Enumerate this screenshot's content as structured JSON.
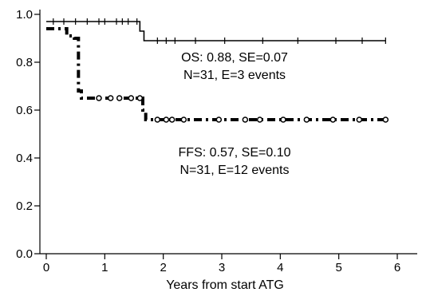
{
  "chart_data": {
    "type": "line",
    "title": "",
    "xlabel": "Years from start ATG",
    "ylabel": "",
    "xlim": [
      0,
      6.6
    ],
    "ylim": [
      0,
      1.0
    ],
    "x_ticks": [
      0,
      1,
      2,
      3,
      4,
      5,
      6
    ],
    "y_ticks": [
      0.0,
      0.2,
      0.4,
      0.6,
      0.8,
      1.0
    ],
    "x_tick_labels": [
      "0",
      "1",
      "2",
      "3",
      "4",
      "5",
      "6"
    ],
    "y_tick_labels": [
      "0.0",
      "0.2",
      "0.4",
      "0.6",
      "0.8",
      "1.0"
    ],
    "grid": false,
    "legend": "none",
    "series": [
      {
        "line_style": "solid",
        "color": "#000000",
        "steps": [
          [
            0,
            0.97
          ],
          [
            1.55,
            0.97
          ],
          [
            1.6,
            0.93
          ],
          [
            1.67,
            0.89
          ],
          [
            5.8,
            0.89
          ]
        ],
        "censor_marks": [
          0.12,
          0.3,
          0.5,
          0.7,
          0.9,
          1.0,
          1.2,
          1.3,
          1.4,
          1.55,
          1.9,
          2.05,
          2.2,
          2.55,
          3.05,
          3.7,
          4.3,
          4.95,
          5.4,
          5.8
        ],
        "annotation": [
          "OS: 0.88, SE=0.07",
          "N=31, E=3 events"
        ]
      },
      {
        "line_style": "dashdot",
        "color": "#000000",
        "steps": [
          [
            0,
            0.94
          ],
          [
            0.35,
            0.94
          ],
          [
            0.35,
            0.91
          ],
          [
            0.48,
            0.91
          ],
          [
            0.48,
            0.9
          ],
          [
            0.55,
            0.9
          ],
          [
            0.55,
            0.68
          ],
          [
            0.6,
            0.68
          ],
          [
            0.6,
            0.65
          ],
          [
            1.65,
            0.65
          ],
          [
            1.65,
            0.6
          ],
          [
            1.7,
            0.6
          ],
          [
            1.7,
            0.56
          ],
          [
            5.8,
            0.56
          ]
        ],
        "censor_marks": [
          0.9,
          1.1,
          1.25,
          1.45,
          1.6,
          1.9,
          2.05,
          2.15,
          2.35,
          2.95,
          3.4,
          3.65,
          4.05,
          4.45,
          4.9,
          5.35,
          5.8
        ],
        "annotation": [
          "FFS: 0.57, SE=0.10",
          "N=31, E=12 events"
        ]
      }
    ]
  }
}
